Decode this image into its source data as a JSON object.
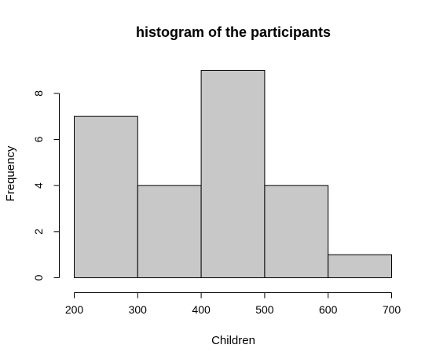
{
  "chart_data": {
    "type": "bar",
    "subtype": "histogram",
    "title": "histogram of the participants",
    "xlabel": "Children",
    "ylabel": "Frequency",
    "bins": [
      [
        200,
        300
      ],
      [
        300,
        400
      ],
      [
        400,
        500
      ],
      [
        500,
        600
      ],
      [
        600,
        700
      ]
    ],
    "values": [
      7,
      4,
      9,
      4,
      1
    ],
    "x_ticks": [
      200,
      300,
      400,
      500,
      600,
      700
    ],
    "y_ticks": [
      0,
      2,
      4,
      6,
      8
    ],
    "xlim": [
      200,
      700
    ],
    "ylim": [
      0,
      9
    ],
    "bar_color": "#c8c8c8",
    "grid": false
  }
}
